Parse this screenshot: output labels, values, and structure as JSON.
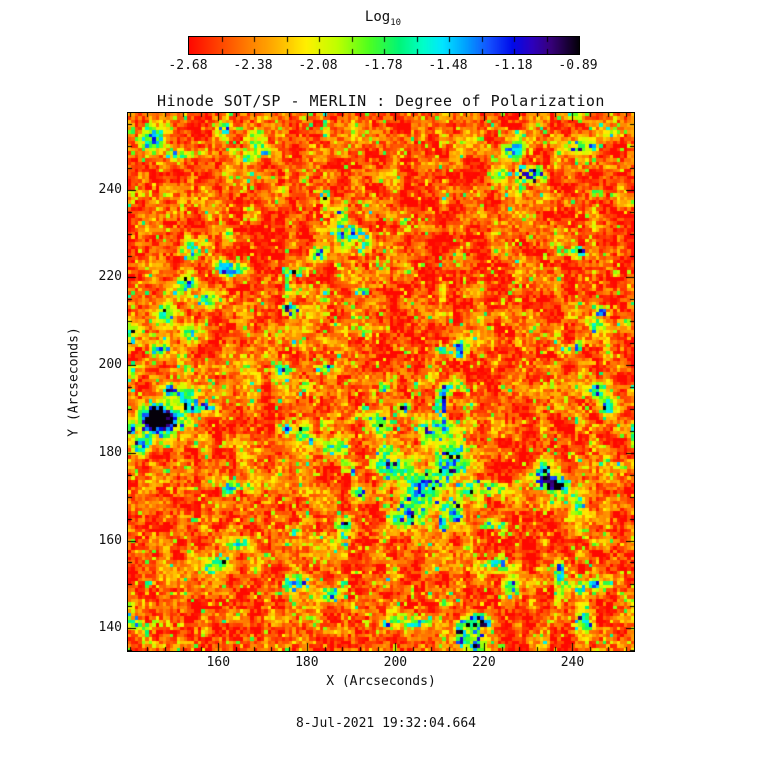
{
  "title": "Hinode SOT/SP - MERLIN : Degree of Polarization",
  "colorbar": {
    "label": "Log",
    "label_sub": "10",
    "tick_labels": [
      "-2.68",
      "-2.38",
      "-2.08",
      "-1.78",
      "-1.48",
      "-1.18",
      "-0.89"
    ]
  },
  "axes": {
    "x": {
      "label": "X (Arcseconds)",
      "min": 139.6,
      "max": 253.9,
      "major_ticks": [
        160,
        180,
        200,
        220,
        240
      ],
      "minor_step": 4
    },
    "y": {
      "label": "Y (Arcseconds)",
      "min": 134.8,
      "max": 257.5,
      "major_ticks": [
        140,
        160,
        180,
        200,
        220,
        240
      ],
      "minor_step": 5
    }
  },
  "footer": {
    "timestamp": "8-Jul-2021 19:32:04.664"
  },
  "chart_data": {
    "type": "heatmap",
    "title": "Hinode SOT/SP - MERLIN : Degree of Polarization",
    "xlabel": "X (Arcseconds)",
    "ylabel": "Y (Arcseconds)",
    "x_range": [
      139.6,
      253.9
    ],
    "y_range": [
      134.8,
      257.5
    ],
    "colorbar_label": "Log10",
    "colorbar_ticks": [
      -2.68,
      -2.38,
      -2.08,
      -1.78,
      -1.48,
      -1.18,
      -0.89
    ],
    "value_range": [
      -2.68,
      -0.89
    ],
    "legend_position": "top",
    "grid": {
      "cols": 145,
      "rows": 154
    },
    "colormap_stops": [
      [
        0.0,
        [
          255,
          8,
          0
        ]
      ],
      [
        0.13,
        [
          255,
          110,
          0
        ]
      ],
      [
        0.22,
        [
          255,
          175,
          0
        ]
      ],
      [
        0.3,
        [
          255,
          240,
          0
        ]
      ],
      [
        0.38,
        [
          190,
          255,
          0
        ]
      ],
      [
        0.46,
        [
          80,
          255,
          30
        ]
      ],
      [
        0.54,
        [
          0,
          245,
          120
        ]
      ],
      [
        0.6,
        [
          0,
          255,
          200
        ]
      ],
      [
        0.65,
        [
          0,
          230,
          255
        ]
      ],
      [
        0.71,
        [
          0,
          160,
          255
        ]
      ],
      [
        0.77,
        [
          20,
          80,
          255
        ]
      ],
      [
        0.83,
        [
          0,
          10,
          235
        ]
      ],
      [
        0.88,
        [
          45,
          0,
          190
        ]
      ],
      [
        0.93,
        [
          55,
          0,
          120
        ]
      ],
      [
        1.0,
        [
          5,
          0,
          10
        ]
      ]
    ],
    "noise": {
      "seed": 11,
      "base_level": -2.5,
      "medium_amp": 0.5,
      "fine_amp": 0.36,
      "column_amp": 0.1,
      "speckle_threshold": 0.88,
      "speckle_gain": 5.5,
      "network_threshold": 0.74,
      "network_gain": 1.15
    },
    "features": [
      {
        "x": 146.0,
        "y": 188.0,
        "rx": 2.6,
        "ry": 2.3,
        "amp": 2.1
      },
      {
        "x": 147.5,
        "y": 187.0,
        "rx": 5.2,
        "ry": 3.6,
        "amp": 1.0
      },
      {
        "x": 143.0,
        "y": 182.0,
        "rx": 2.0,
        "ry": 2.0,
        "amp": 0.85
      },
      {
        "x": 151.5,
        "y": 193.5,
        "rx": 2.6,
        "ry": 1.8,
        "amp": 0.8
      },
      {
        "x": 140.3,
        "y": 208.0,
        "rx": 1.4,
        "ry": 2.2,
        "amp": 0.9
      },
      {
        "x": 140.5,
        "y": 198.5,
        "rx": 1.3,
        "ry": 1.8,
        "amp": 0.75
      },
      {
        "x": 152.5,
        "y": 218.5,
        "rx": 2.6,
        "ry": 2.2,
        "amp": 1.0
      },
      {
        "x": 157.5,
        "y": 214.5,
        "rx": 1.8,
        "ry": 1.8,
        "amp": 0.9
      },
      {
        "x": 148.5,
        "y": 211.0,
        "rx": 2.0,
        "ry": 2.4,
        "amp": 0.95
      },
      {
        "x": 154.0,
        "y": 207.0,
        "rx": 2.4,
        "ry": 2.0,
        "amp": 0.9
      },
      {
        "x": 146.5,
        "y": 203.5,
        "rx": 1.6,
        "ry": 1.6,
        "amp": 0.75
      },
      {
        "x": 160.5,
        "y": 222.0,
        "rx": 1.6,
        "ry": 1.6,
        "amp": 0.7
      },
      {
        "x": 145.5,
        "y": 251.5,
        "rx": 2.2,
        "ry": 2.4,
        "amp": 1.05
      },
      {
        "x": 169.0,
        "y": 251.5,
        "rx": 2.2,
        "ry": 2.2,
        "amp": 1.0
      },
      {
        "x": 166.5,
        "y": 247.0,
        "rx": 1.5,
        "ry": 1.5,
        "amp": 0.75
      },
      {
        "x": 163.8,
        "y": 248.5,
        "rx": 1.2,
        "ry": 1.2,
        "amp": 0.7
      },
      {
        "x": 182.5,
        "y": 225.0,
        "rx": 1.6,
        "ry": 1.5,
        "amp": 0.7
      },
      {
        "x": 178.5,
        "y": 205.0,
        "rx": 1.3,
        "ry": 1.3,
        "amp": 0.65
      },
      {
        "x": 206.5,
        "y": 172.0,
        "rx": 4.2,
        "ry": 4.0,
        "amp": 1.05
      },
      {
        "x": 212.5,
        "y": 178.5,
        "rx": 3.8,
        "ry": 3.4,
        "amp": 1.1
      },
      {
        "x": 203.0,
        "y": 165.5,
        "rx": 3.0,
        "ry": 3.0,
        "amp": 1.0
      },
      {
        "x": 209.5,
        "y": 185.5,
        "rx": 3.4,
        "ry": 2.4,
        "amp": 0.95
      },
      {
        "x": 199.5,
        "y": 176.5,
        "rx": 3.0,
        "ry": 2.8,
        "amp": 0.9
      },
      {
        "x": 217.0,
        "y": 171.5,
        "rx": 2.4,
        "ry": 2.4,
        "amp": 0.95
      },
      {
        "x": 213.0,
        "y": 166.0,
        "rx": 2.2,
        "ry": 2.2,
        "amp": 0.9
      },
      {
        "x": 196.5,
        "y": 186.5,
        "rx": 2.4,
        "ry": 2.0,
        "amp": 0.8
      },
      {
        "x": 186.0,
        "y": 181.5,
        "rx": 3.6,
        "ry": 2.0,
        "amp": 0.7
      },
      {
        "x": 179.0,
        "y": 184.0,
        "rx": 2.2,
        "ry": 2.2,
        "amp": 0.85
      },
      {
        "x": 192.0,
        "y": 170.0,
        "rx": 2.0,
        "ry": 2.0,
        "amp": 0.7
      },
      {
        "x": 236.5,
        "y": 172.5,
        "rx": 2.6,
        "ry": 2.4,
        "amp": 1.15
      },
      {
        "x": 234.0,
        "y": 176.5,
        "rx": 3.0,
        "ry": 2.5,
        "amp": 0.75
      },
      {
        "x": 241.0,
        "y": 168.0,
        "rx": 1.8,
        "ry": 1.8,
        "amp": 0.8
      },
      {
        "x": 248.0,
        "y": 190.0,
        "rx": 1.8,
        "ry": 2.2,
        "amp": 0.95
      },
      {
        "x": 245.5,
        "y": 194.0,
        "rx": 1.8,
        "ry": 1.8,
        "amp": 0.7
      },
      {
        "x": 245.5,
        "y": 209.5,
        "rx": 2.2,
        "ry": 1.6,
        "amp": 0.85
      },
      {
        "x": 252.0,
        "y": 209.5,
        "rx": 1.5,
        "ry": 1.5,
        "amp": 0.7
      },
      {
        "x": 227.0,
        "y": 249.0,
        "rx": 2.3,
        "ry": 2.3,
        "amp": 0.95
      },
      {
        "x": 224.0,
        "y": 243.5,
        "rx": 1.7,
        "ry": 1.7,
        "amp": 0.7
      },
      {
        "x": 241.5,
        "y": 249.5,
        "rx": 3.6,
        "ry": 1.7,
        "amp": 0.75
      },
      {
        "x": 248.5,
        "y": 252.0,
        "rx": 1.6,
        "ry": 1.4,
        "amp": 0.65
      },
      {
        "x": 218.5,
        "y": 135.5,
        "rx": 2.0,
        "ry": 3.8,
        "amp": 1.1
      },
      {
        "x": 220.5,
        "y": 130.5,
        "rx": 1.8,
        "ry": 1.8,
        "amp": 0.85
      },
      {
        "x": 226.0,
        "y": 150.0,
        "rx": 1.4,
        "ry": 2.4,
        "amp": 0.9
      },
      {
        "x": 243.0,
        "y": 142.5,
        "rx": 1.7,
        "ry": 2.8,
        "amp": 0.95
      },
      {
        "x": 242.0,
        "y": 149.0,
        "rx": 1.4,
        "ry": 1.8,
        "amp": 0.7
      },
      {
        "x": 160.0,
        "y": 155.0,
        "rx": 2.4,
        "ry": 1.9,
        "amp": 0.7
      },
      {
        "x": 185.0,
        "y": 147.5,
        "rx": 2.8,
        "ry": 1.6,
        "amp": 0.65
      },
      {
        "x": 174.0,
        "y": 199.0,
        "rx": 1.7,
        "ry": 1.7,
        "amp": 0.7
      }
    ]
  }
}
